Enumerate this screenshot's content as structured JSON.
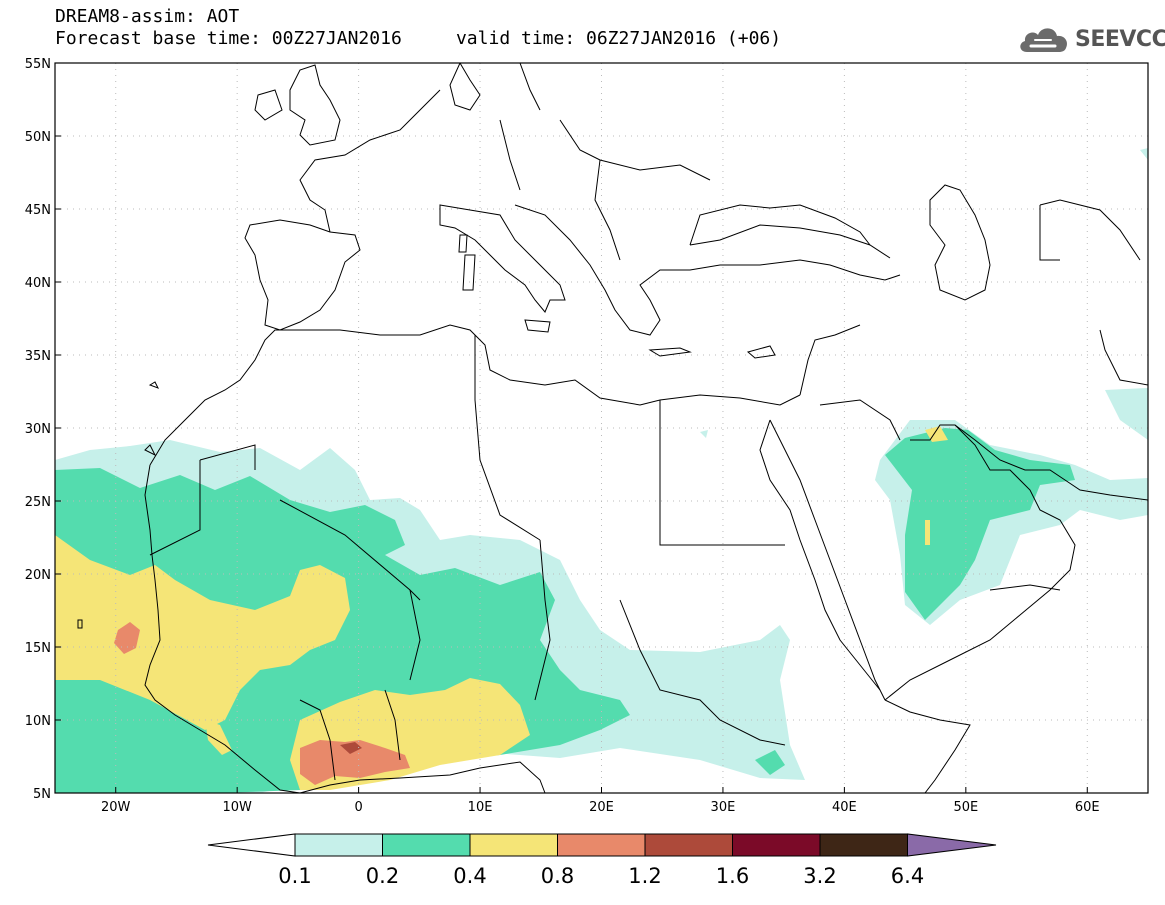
{
  "title": {
    "line1": "DREAM8-assim: AOT",
    "line2": "Forecast base time: 00Z27JAN2016     valid time: 06Z27JAN2016 (+06)"
  },
  "logo": {
    "text": "SEEVCCC",
    "icon": "cloud-icon"
  },
  "map": {
    "lon_range": [
      -25,
      65
    ],
    "lat_range": [
      5,
      55
    ],
    "lon_ticks": [
      {
        "value": -20,
        "label": "20W"
      },
      {
        "value": -10,
        "label": "10W"
      },
      {
        "value": 0,
        "label": "0"
      },
      {
        "value": 10,
        "label": "10E"
      },
      {
        "value": 20,
        "label": "20E"
      },
      {
        "value": 30,
        "label": "30E"
      },
      {
        "value": 40,
        "label": "40E"
      },
      {
        "value": 50,
        "label": "50E"
      },
      {
        "value": 60,
        "label": "60E"
      }
    ],
    "lat_ticks": [
      {
        "value": 5,
        "label": "5N"
      },
      {
        "value": 10,
        "label": "10N"
      },
      {
        "value": 15,
        "label": "15N"
      },
      {
        "value": 20,
        "label": "20N"
      },
      {
        "value": 25,
        "label": "25N"
      },
      {
        "value": 30,
        "label": "30N"
      },
      {
        "value": 35,
        "label": "35N"
      },
      {
        "value": 40,
        "label": "40N"
      },
      {
        "value": 45,
        "label": "45N"
      },
      {
        "value": 50,
        "label": "50N"
      },
      {
        "value": 55,
        "label": "55N"
      }
    ],
    "grid": "dotted"
  },
  "colorbar": {
    "colors": [
      "#ffffff",
      "#c6f0ea",
      "#54dcae",
      "#f5e577",
      "#e8896a",
      "#ad4a3a",
      "#7b0a28",
      "#3e2616",
      "#8a6aa8"
    ],
    "labels": [
      "0.1",
      "0.2",
      "0.4",
      "0.8",
      "1.2",
      "1.6",
      "3.2",
      "6.4"
    ]
  }
}
